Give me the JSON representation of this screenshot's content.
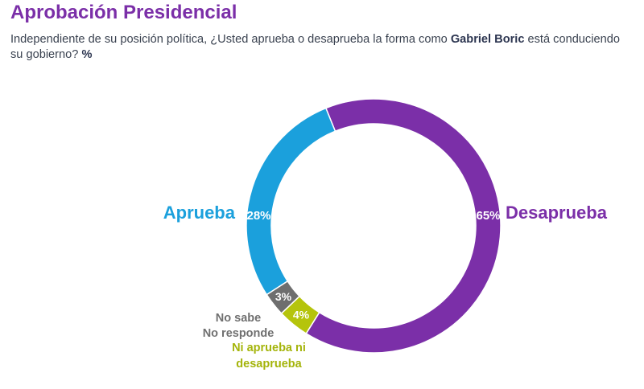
{
  "header": {
    "title": "Aprobación Presidencial",
    "subtitle_before": "Independiente de su posición política, ¿Usted aprueba o desaprueba la forma como ",
    "subtitle_bold": "Gabriel Boric",
    "subtitle_after": " está conduciendo su gobierno? ",
    "subtitle_pct": "%"
  },
  "chart_data": {
    "type": "pie",
    "variant": "donut",
    "title": "Aprobación Presidencial",
    "slices": [
      {
        "label": "Desaprueba",
        "label_lines": [
          "Desaprueba"
        ],
        "value": 65,
        "display": "65%",
        "color": "#7b2fa8",
        "label_color": "#7b2fa8"
      },
      {
        "label": "Ni aprueba ni desaprueba",
        "label_lines": [
          "Ni aprueba ni",
          "desaprueba"
        ],
        "value": 4,
        "display": "4%",
        "color": "#b5c40c",
        "label_color": "#a4b40a"
      },
      {
        "label": "No sabe No responde",
        "label_lines": [
          "No sabe",
          "No responde"
        ],
        "value": 3,
        "display": "3%",
        "color": "#6e6e6e",
        "label_color": "#707070"
      },
      {
        "label": "Aprueba",
        "label_lines": [
          "Aprueba"
        ],
        "value": 28,
        "display": "28%",
        "color": "#1ba0dc",
        "label_color": "#1ba0dc"
      }
    ]
  }
}
